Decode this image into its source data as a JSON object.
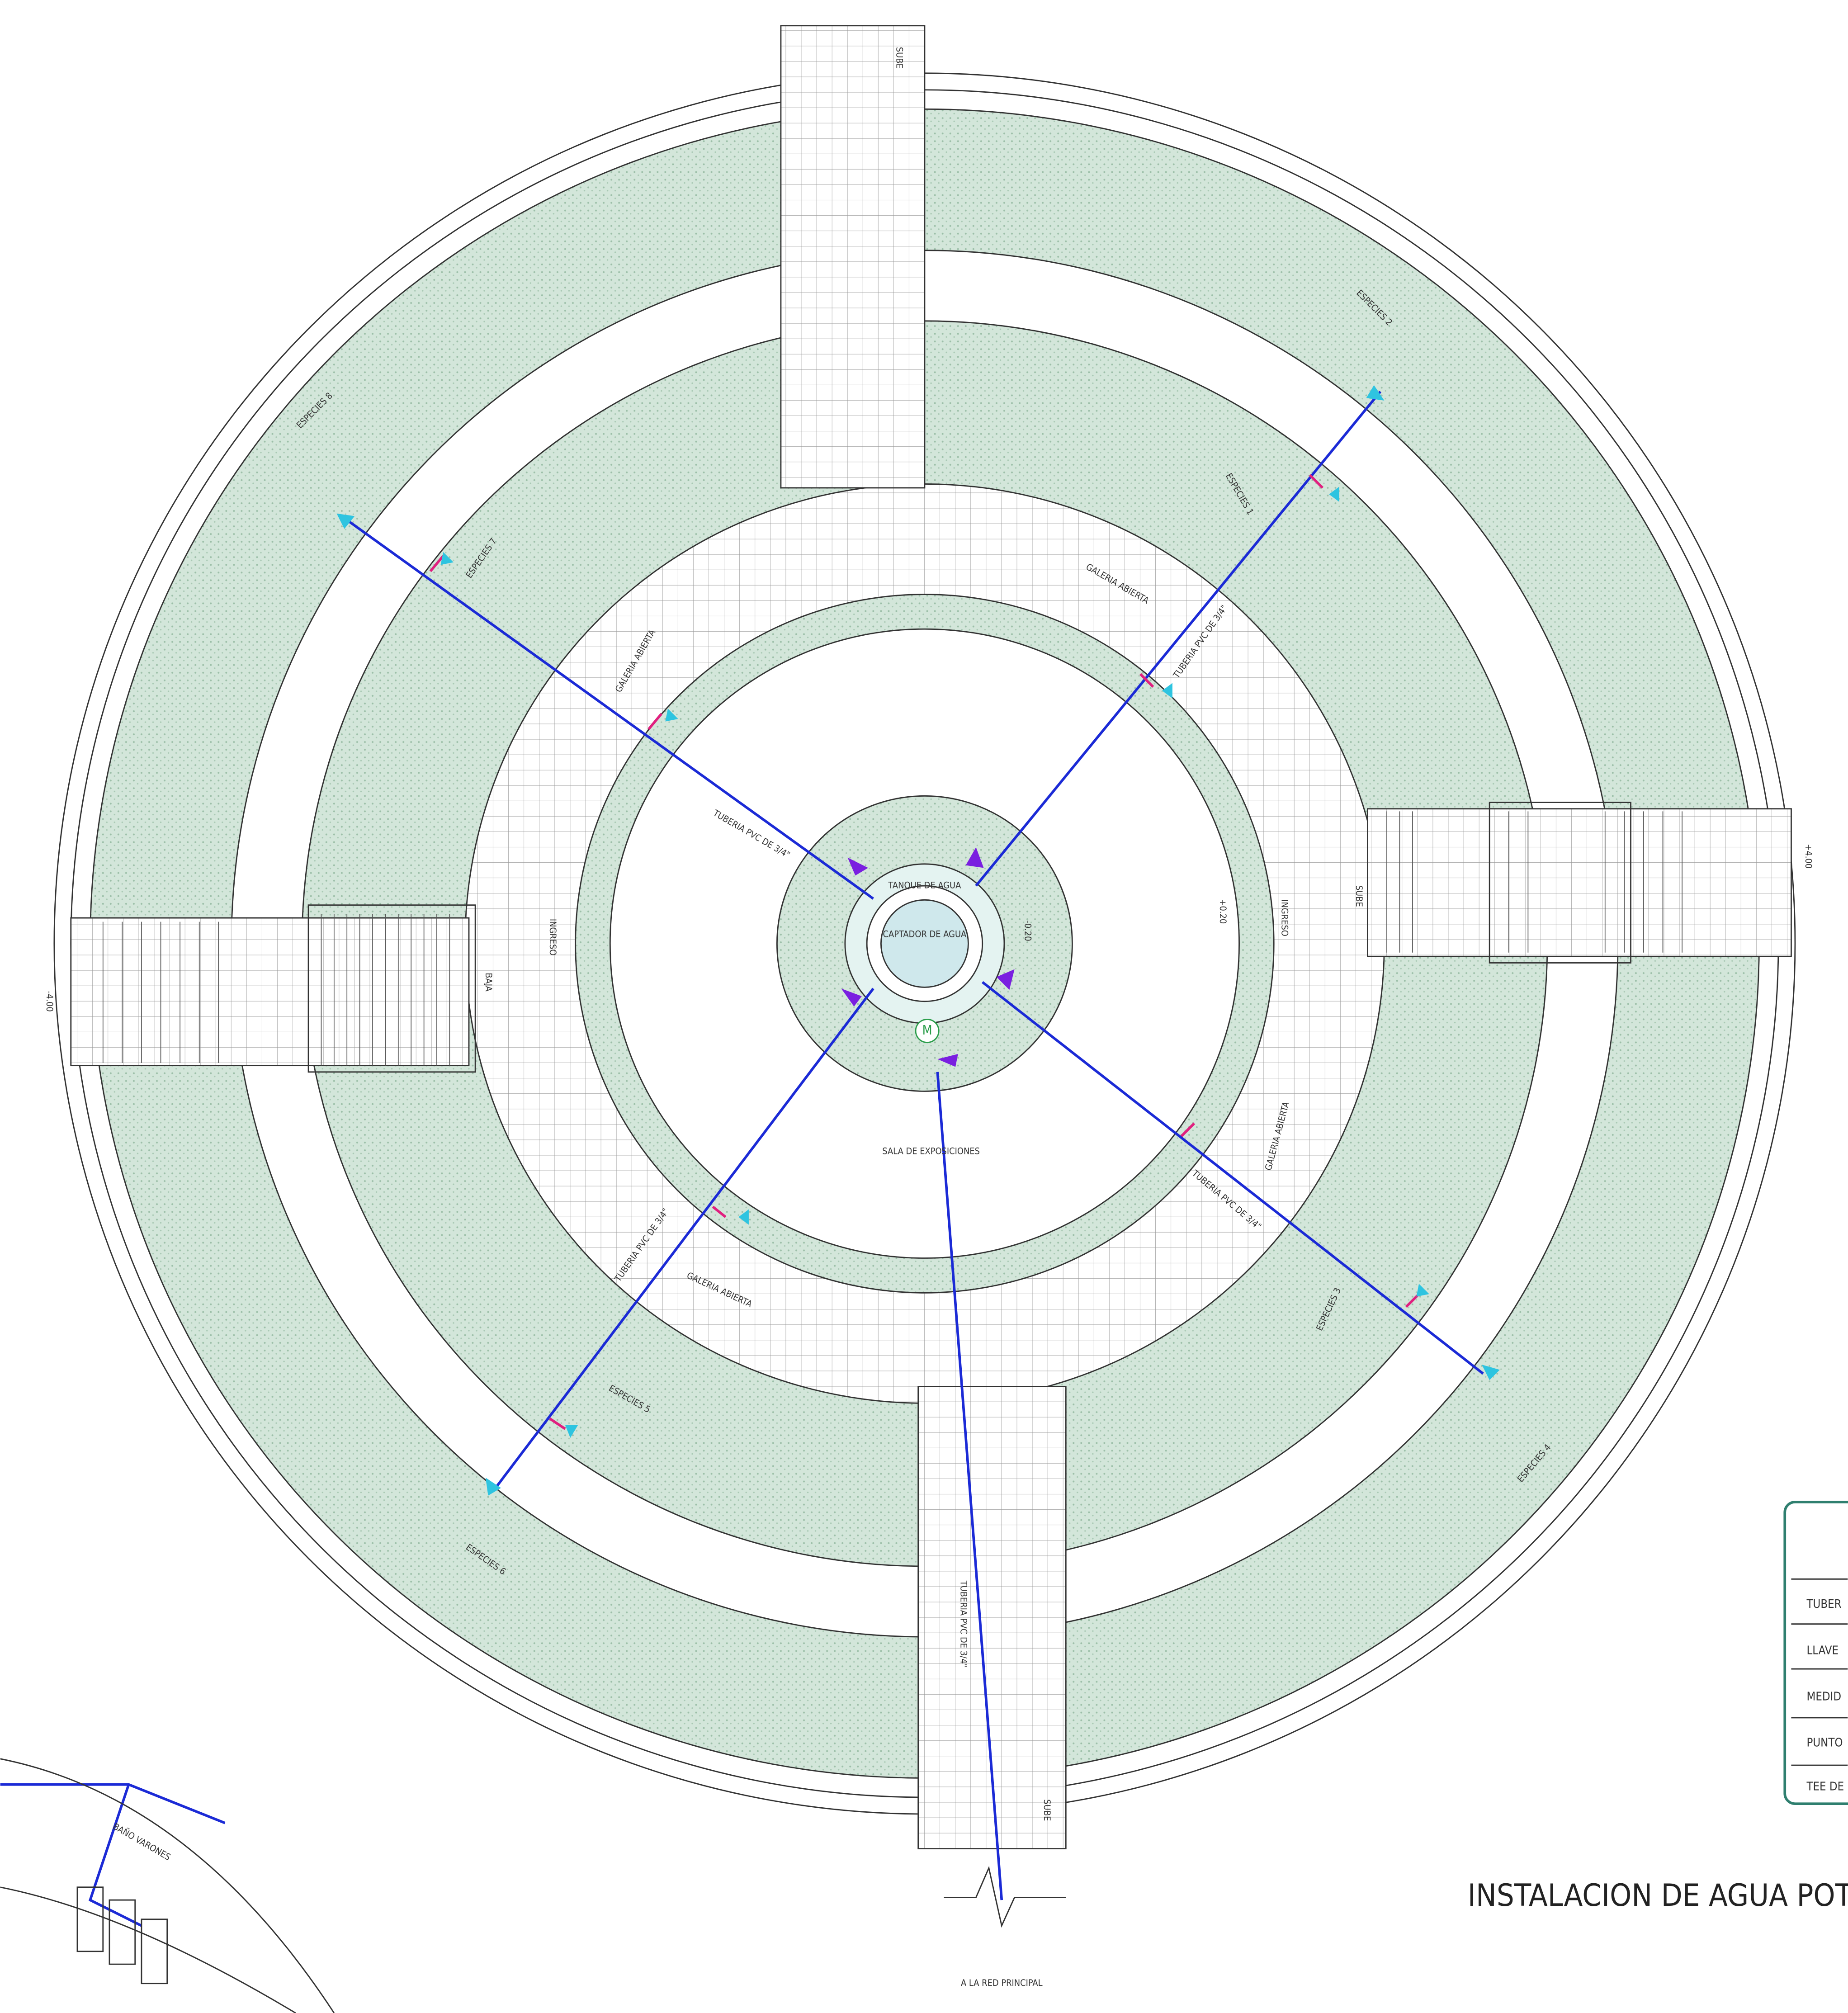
{
  "drawing": {
    "title": "INSTALACION DE AGUA POTAB",
    "center": {
      "tank": "TANQUE DE AGUA",
      "collector": "CAPTADOR DE AGUA",
      "meter": "M"
    },
    "hall": "SALA DE EXPOSICIONES",
    "galleries": [
      "GALERIA ABIERTA",
      "GALERIA ABIERTA",
      "GALERIA ABIERTA",
      "GALERIA ABIERTA"
    ],
    "entrances": [
      "INGRESO",
      "INGRESO"
    ],
    "stairs": [
      "SUBE",
      "SUBE",
      "SUBE",
      "BAJA"
    ],
    "species": [
      "ESPECIES 1",
      "ESPECIES 2",
      "ESPECIES 3",
      "ESPECIES 4",
      "ESPECIES 5",
      "ESPECIES 6",
      "ESPECIES 7",
      "ESPECIES 8"
    ],
    "pipes": [
      "TUBERIA PVC DE 3/4\"",
      "TUBERIA PVC DE 3/4\"",
      "TUBERIA PVC DE 3/4\"",
      "TUBERIA PVC DE 3/4\"",
      "TUBERIA PVC DE 3/4\""
    ],
    "levels": [
      "+4.00",
      "-4.00",
      "+0.20",
      "-0.20"
    ],
    "main_network": "A LA RED PRINCIPAL",
    "bathroom": "BAÑO VARONES",
    "legend": {
      "rows": [
        "TUBER",
        "LLAVE",
        "MEDID",
        "PUNTO",
        "TEE DE"
      ]
    }
  }
}
